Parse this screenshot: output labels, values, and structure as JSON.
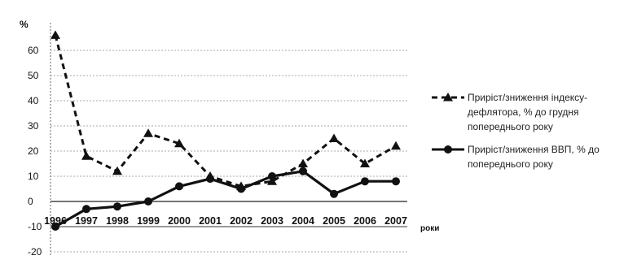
{
  "chart_data": {
    "type": "line",
    "categories": [
      "1996",
      "1997",
      "1998",
      "1999",
      "2000",
      "2001",
      "2002",
      "2003",
      "2004",
      "2005",
      "2006",
      "2007"
    ],
    "ylabel": "%",
    "xlabel": "роки",
    "ylim": [
      -20,
      70
    ],
    "yticks": [
      -20,
      -10,
      0,
      10,
      20,
      30,
      40,
      50,
      60
    ],
    "grid": true,
    "legend_position": "right",
    "series": [
      {
        "name": "Приріст/зниження індексу-дефлятора, % до грудня попереднього року",
        "legend_lines": [
          "Приріст/зниження індексу-",
          "дефлятора, % до грудня",
          "попереднього року"
        ],
        "line_style": "dashed",
        "marker": "triangle",
        "color": "#111111",
        "values": [
          66,
          18,
          12,
          27,
          23,
          10,
          6,
          8,
          15,
          25,
          15,
          22
        ]
      },
      {
        "name": "Приріст/зниження ВВП, % до попереднього року",
        "legend_lines": [
          "Приріст/зниження ВВП, % до",
          "попереднього року"
        ],
        "line_style": "solid",
        "marker": "circle",
        "color": "#111111",
        "values": [
          -10,
          -3,
          -2,
          0,
          6,
          9,
          5,
          10,
          12,
          3,
          8,
          8
        ]
      }
    ]
  }
}
